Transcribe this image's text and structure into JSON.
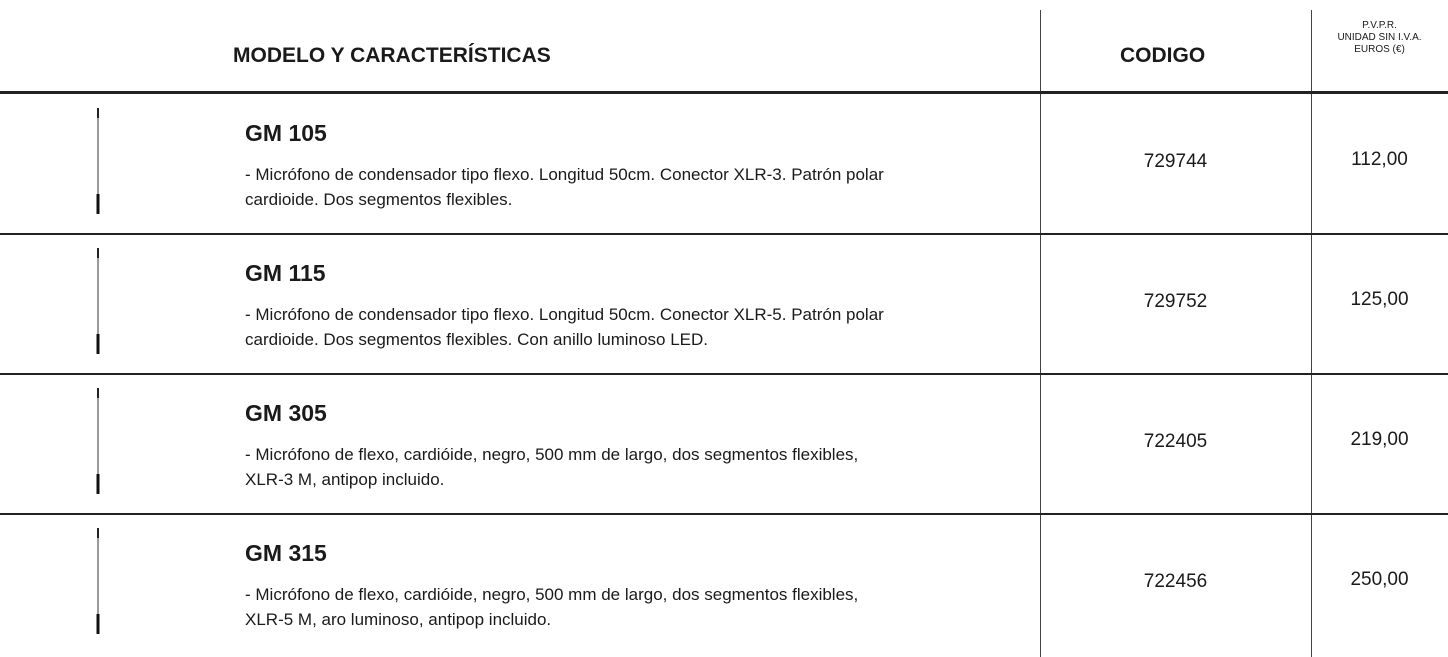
{
  "header": {
    "model": "MODELO Y CARACTERÍSTICAS",
    "code": "CODIGO",
    "price": [
      "P.V.P.R.",
      "UNIDAD SIN I.V.A.",
      "EUROS (€)"
    ]
  },
  "table": {
    "rows": [
      {
        "name": "GM 105",
        "description": [
          "- Micrófono de condensador tipo flexo. Longitud 50cm. Conector XLR-3. Patrón polar",
          "cardioide. Dos segmentos flexibles."
        ],
        "code": "729744",
        "price": "112,00"
      },
      {
        "name": "GM 115",
        "description": [
          "- Micrófono de condensador tipo flexo. Longitud 50cm. Conector XLR-5. Patrón polar",
          "cardioide. Dos segmentos flexibles. Con anillo luminoso LED."
        ],
        "code": "729752",
        "price": "125,00"
      },
      {
        "name": "GM 305",
        "description": [
          "- Micrófono de flexo, cardióide, negro, 500 mm de largo, dos segmentos flexibles,",
          "XLR-3 M, antipop incluido."
        ],
        "code": "722405",
        "price": "219,00"
      },
      {
        "name": "GM 315",
        "description": [
          "- Micrófono de flexo, cardióide, negro, 500 mm de largo, dos segmentos flexibles,",
          "XLR-5 M, aro luminoso, antipop incluido."
        ],
        "code": "722456",
        "price": "250,00"
      }
    ]
  }
}
